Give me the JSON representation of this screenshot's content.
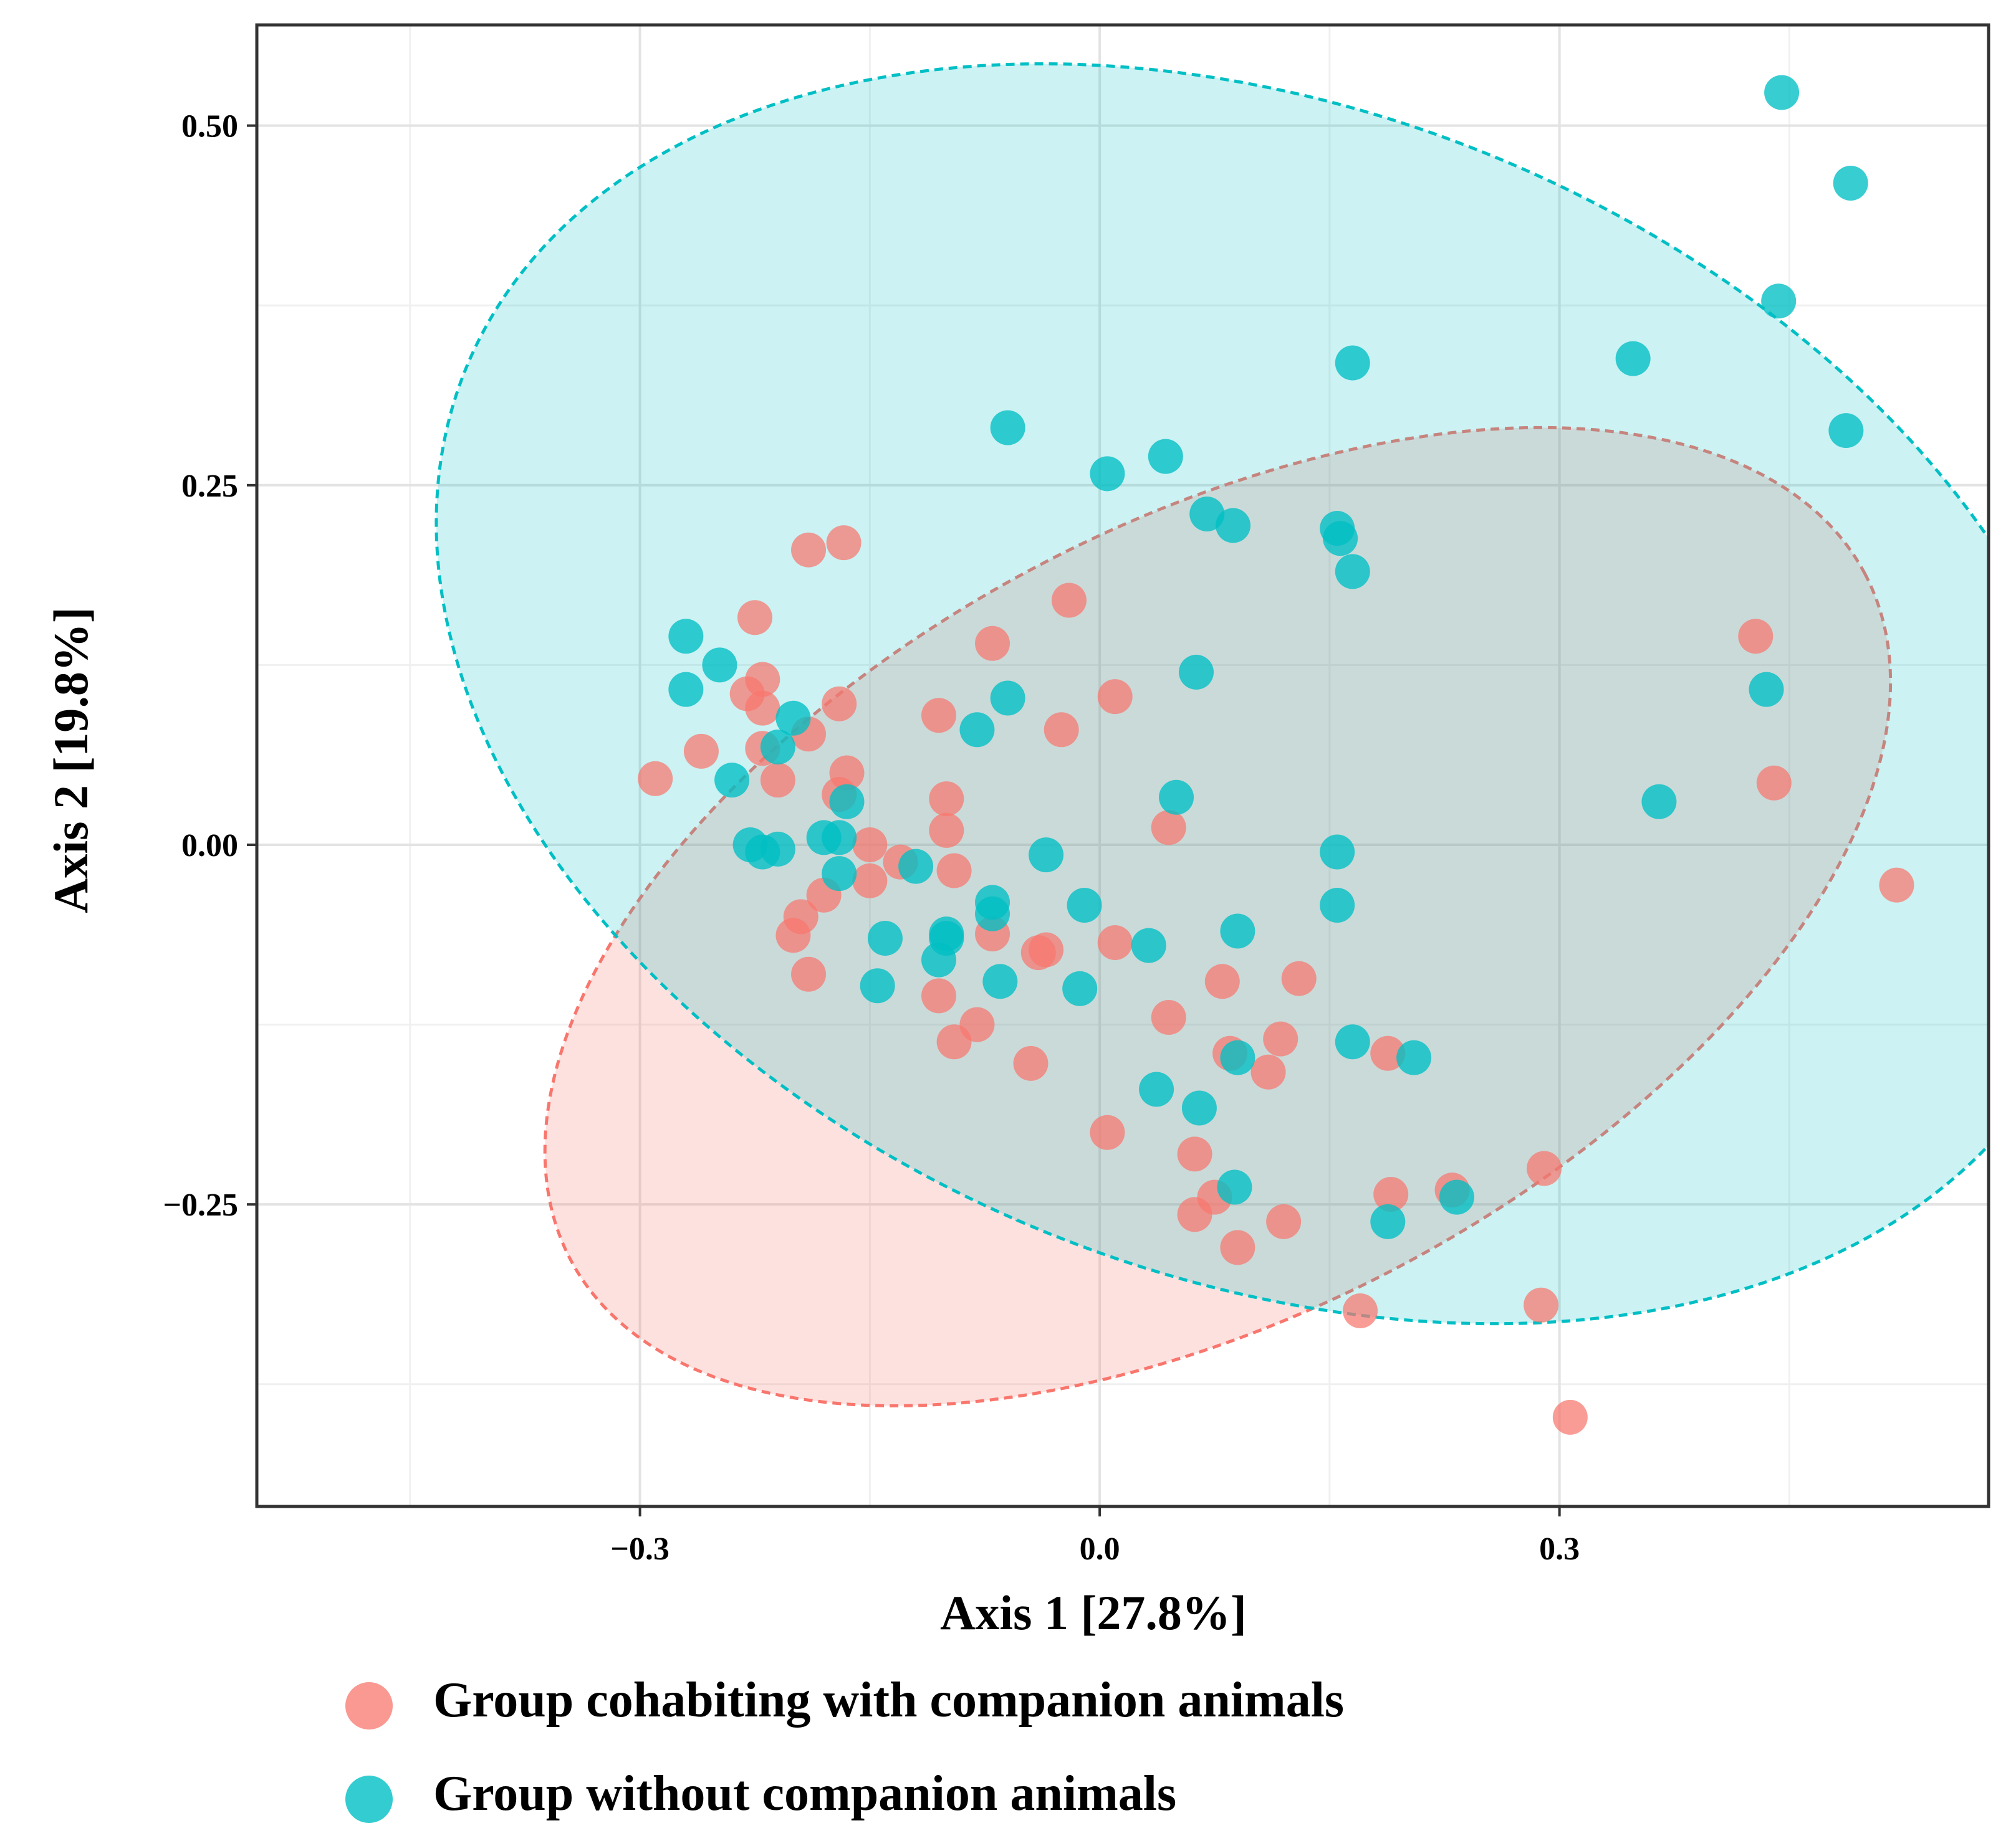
{
  "chart_data": {
    "type": "scatter",
    "title": "",
    "xlabel": "Axis 1 [27.8%]",
    "ylabel": "Axis 2 [19.8%]",
    "xlim": [
      -0.55,
      0.58
    ],
    "ylim": [
      -0.46,
      0.57
    ],
    "xticks": [
      -0.3,
      0.0,
      0.3
    ],
    "xtick_labels": [
      "−0.3",
      "0.0",
      "0.3"
    ],
    "yticks": [
      -0.25,
      0.0,
      0.25,
      0.5
    ],
    "ytick_labels": [
      "−0.25",
      "0.00",
      "0.25",
      "0.50"
    ],
    "grid": true,
    "legend_position": "bottom",
    "series": [
      {
        "name": "Group cohabiting with companion animals",
        "color": "#F8766D",
        "ellipse": {
          "center": [
            0.077,
            -0.05
          ],
          "rx": 0.478,
          "ry": 0.274,
          "angle_deg": -28
        },
        "points": [
          [
            -0.29,
            0.046
          ],
          [
            -0.26,
            0.065
          ],
          [
            -0.23,
            0.105
          ],
          [
            -0.22,
            0.095
          ],
          [
            -0.225,
            0.158
          ],
          [
            -0.22,
            0.115
          ],
          [
            -0.22,
            0.067
          ],
          [
            -0.21,
            0.045
          ],
          [
            -0.19,
            0.077
          ],
          [
            -0.19,
            0.205
          ],
          [
            -0.167,
            0.21
          ],
          [
            -0.17,
            0.098
          ],
          [
            -0.165,
            0.05
          ],
          [
            -0.17,
            0.035
          ],
          [
            -0.15,
            0.0
          ],
          [
            -0.13,
            -0.012
          ],
          [
            -0.15,
            -0.025
          ],
          [
            -0.18,
            -0.035
          ],
          [
            -0.195,
            -0.05
          ],
          [
            -0.2,
            -0.063
          ],
          [
            -0.19,
            -0.09
          ],
          [
            -0.105,
            0.09
          ],
          [
            -0.1,
            0.032
          ],
          [
            -0.1,
            0.01
          ],
          [
            -0.095,
            -0.018
          ],
          [
            -0.07,
            0.14
          ],
          [
            -0.02,
            0.17
          ],
          [
            -0.025,
            0.08
          ],
          [
            0.01,
            0.103
          ],
          [
            -0.07,
            -0.062
          ],
          [
            -0.035,
            -0.073
          ],
          [
            -0.04,
            -0.075
          ],
          [
            0.01,
            -0.068
          ],
          [
            -0.105,
            -0.105
          ],
          [
            -0.08,
            -0.125
          ],
          [
            -0.095,
            -0.137
          ],
          [
            -0.045,
            -0.152
          ],
          [
            0.045,
            0.012
          ],
          [
            0.08,
            -0.095
          ],
          [
            0.13,
            -0.093
          ],
          [
            0.045,
            -0.12
          ],
          [
            0.085,
            -0.145
          ],
          [
            0.11,
            -0.158
          ],
          [
            0.118,
            -0.135
          ],
          [
            0.005,
            -0.2
          ],
          [
            0.062,
            -0.215
          ],
          [
            0.075,
            -0.245
          ],
          [
            0.062,
            -0.257
          ],
          [
            0.09,
            -0.28
          ],
          [
            0.12,
            -0.262
          ],
          [
            0.188,
            -0.145
          ],
          [
            0.19,
            -0.243
          ],
          [
            0.23,
            -0.24
          ],
          [
            0.29,
            -0.225
          ],
          [
            0.288,
            -0.32
          ],
          [
            0.17,
            -0.324
          ],
          [
            0.307,
            -0.398
          ],
          [
            0.428,
            0.145
          ],
          [
            0.44,
            0.043
          ],
          [
            0.52,
            -0.028
          ]
        ]
      },
      {
        "name": "Group without companion animals",
        "color": "#00BFC4",
        "ellipse": {
          "center": [
            0.11,
            0.105
          ],
          "rx": 0.565,
          "ry": 0.405,
          "angle_deg": 22
        },
        "points": [
          [
            -0.27,
            0.145
          ],
          [
            -0.248,
            0.125
          ],
          [
            -0.27,
            0.108
          ],
          [
            -0.24,
            0.045
          ],
          [
            -0.228,
            0.0
          ],
          [
            -0.22,
            -0.005
          ],
          [
            -0.21,
            -0.003
          ],
          [
            -0.2,
            0.088
          ],
          [
            -0.21,
            0.068
          ],
          [
            -0.165,
            0.03
          ],
          [
            -0.18,
            0.005
          ],
          [
            -0.17,
            0.005
          ],
          [
            -0.17,
            -0.02
          ],
          [
            -0.14,
            -0.065
          ],
          [
            -0.145,
            -0.098
          ],
          [
            -0.12,
            -0.015
          ],
          [
            -0.1,
            -0.062
          ],
          [
            -0.1,
            -0.065
          ],
          [
            -0.105,
            -0.08
          ],
          [
            -0.07,
            -0.04
          ],
          [
            -0.07,
            -0.048
          ],
          [
            -0.065,
            -0.095
          ],
          [
            -0.08,
            0.08
          ],
          [
            -0.06,
            0.102
          ],
          [
            -0.035,
            -0.007
          ],
          [
            -0.01,
            -0.042
          ],
          [
            -0.013,
            -0.1
          ],
          [
            -0.06,
            0.29
          ],
          [
            0.005,
            0.258
          ],
          [
            0.043,
            0.27
          ],
          [
            0.07,
            0.23
          ],
          [
            0.087,
            0.222
          ],
          [
            0.063,
            0.12
          ],
          [
            0.05,
            0.033
          ],
          [
            0.09,
            -0.06
          ],
          [
            0.032,
            -0.07
          ],
          [
            0.037,
            -0.17
          ],
          [
            0.065,
            -0.183
          ],
          [
            0.09,
            -0.148
          ],
          [
            0.088,
            -0.238
          ],
          [
            0.155,
            0.22
          ],
          [
            0.157,
            0.213
          ],
          [
            0.165,
            0.19
          ],
          [
            0.165,
            0.335
          ],
          [
            0.155,
            -0.005
          ],
          [
            0.155,
            -0.042
          ],
          [
            0.165,
            -0.137
          ],
          [
            0.205,
            -0.148
          ],
          [
            0.188,
            -0.262
          ],
          [
            0.233,
            -0.245
          ],
          [
            0.348,
            0.338
          ],
          [
            0.365,
            0.03
          ],
          [
            0.435,
            0.108
          ],
          [
            0.443,
            0.378
          ],
          [
            0.445,
            0.523
          ],
          [
            0.49,
            0.46
          ],
          [
            0.487,
            0.288
          ]
        ]
      }
    ]
  }
}
